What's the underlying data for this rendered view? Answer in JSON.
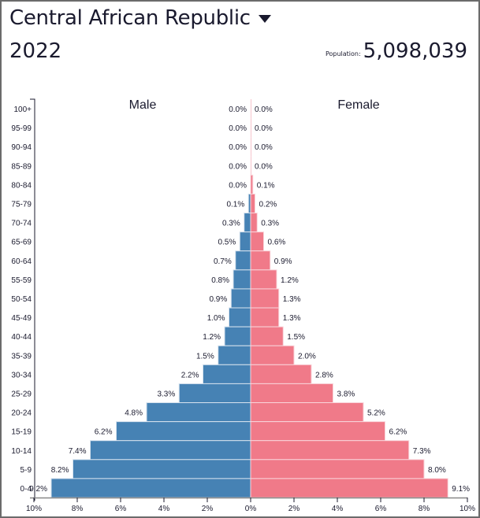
{
  "header": {
    "country": "Central African Republic",
    "dropdown_icon": "caret-down-icon",
    "year": "2022",
    "population_label": "Population:",
    "population_value": "5,098,039"
  },
  "colors": {
    "male": "#4682b4",
    "female": "#f07a89",
    "text": "#1a1a2e"
  },
  "chart_data": {
    "type": "bar",
    "orientation": "horizontal-population-pyramid",
    "categories": [
      "100+",
      "95-99",
      "90-94",
      "85-89",
      "80-84",
      "75-79",
      "70-74",
      "65-69",
      "60-64",
      "55-59",
      "50-54",
      "45-49",
      "40-44",
      "35-39",
      "30-34",
      "25-29",
      "20-24",
      "15-19",
      "10-14",
      "5-9",
      "0-4"
    ],
    "series": [
      {
        "name": "Male",
        "values": [
          0.0,
          0.0,
          0.0,
          0.0,
          0.0,
          0.1,
          0.3,
          0.5,
          0.7,
          0.8,
          0.9,
          1.0,
          1.2,
          1.5,
          2.2,
          3.3,
          4.8,
          6.2,
          7.4,
          8.2,
          9.2
        ],
        "labels": [
          "0.0%",
          "0.0%",
          "0.0%",
          "0.0%",
          "0.0%",
          "0.1%",
          "0.3%",
          "0.5%",
          "0.7%",
          "0.8%",
          "0.9%",
          "1.0%",
          "1.2%",
          "1.5%",
          "2.2%",
          "3.3%",
          "4.8%",
          "6.2%",
          "7.4%",
          "8.2%",
          "9.2%"
        ]
      },
      {
        "name": "Female",
        "values": [
          0.0,
          0.0,
          0.0,
          0.0,
          0.1,
          0.2,
          0.3,
          0.6,
          0.9,
          1.2,
          1.3,
          1.3,
          1.5,
          2.0,
          2.8,
          3.8,
          5.2,
          6.2,
          7.3,
          8.0,
          9.1
        ],
        "labels": [
          "0.0%",
          "0.0%",
          "0.0%",
          "0.0%",
          "0.1%",
          "0.2%",
          "0.3%",
          "0.6%",
          "0.9%",
          "1.2%",
          "1.3%",
          "1.3%",
          "1.5%",
          "2.0%",
          "2.8%",
          "3.8%",
          "5.2%",
          "6.2%",
          "7.3%",
          "8.0%",
          "9.1%"
        ]
      }
    ],
    "xlim": [
      -10,
      10
    ],
    "xticks": [
      {
        "value": -10,
        "label": "10%"
      },
      {
        "value": -8,
        "label": "8%"
      },
      {
        "value": -6,
        "label": "6%"
      },
      {
        "value": -4,
        "label": "4%"
      },
      {
        "value": -2,
        "label": "2%"
      },
      {
        "value": 0,
        "label": "0%"
      },
      {
        "value": 2,
        "label": "2%"
      },
      {
        "value": 4,
        "label": "4%"
      },
      {
        "value": 6,
        "label": "6%"
      },
      {
        "value": 8,
        "label": "8%"
      },
      {
        "value": 10,
        "label": "10%"
      }
    ],
    "xlabel": "",
    "ylabel": "",
    "grid": false,
    "legend": "top"
  }
}
